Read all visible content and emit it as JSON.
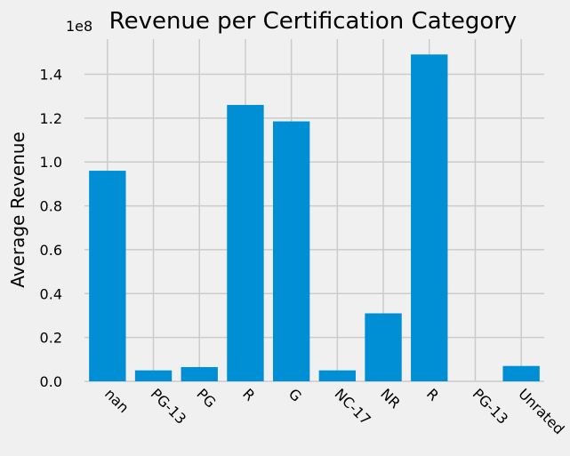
{
  "chart_data": {
    "type": "bar",
    "title": "Revenue per Certification Category",
    "xlabel": "",
    "ylabel": "Average Revenue",
    "offset_text": "1e8",
    "categories": [
      "nan",
      "PG-13",
      "PG",
      "R",
      "G",
      "NC-17",
      "NR",
      "R",
      "PG-13",
      "Unrated"
    ],
    "values": [
      0.96,
      0.05,
      0.065,
      1.26,
      1.185,
      0.05,
      0.31,
      1.49,
      0.0,
      0.07
    ],
    "value_scale": 100000000,
    "ylim": [
      0,
      1.56
    ],
    "yticks": [
      0.0,
      0.2,
      0.4,
      0.6,
      0.8,
      1.0,
      1.2,
      1.4
    ],
    "ytick_labels": [
      "0.0",
      "0.2",
      "0.4",
      "0.6",
      "0.8",
      "1.0",
      "1.2",
      "1.4"
    ],
    "grid": true,
    "bar_color": "#008fd5",
    "background": "#f0f0f0",
    "grid_color": "#cbcbcb"
  }
}
